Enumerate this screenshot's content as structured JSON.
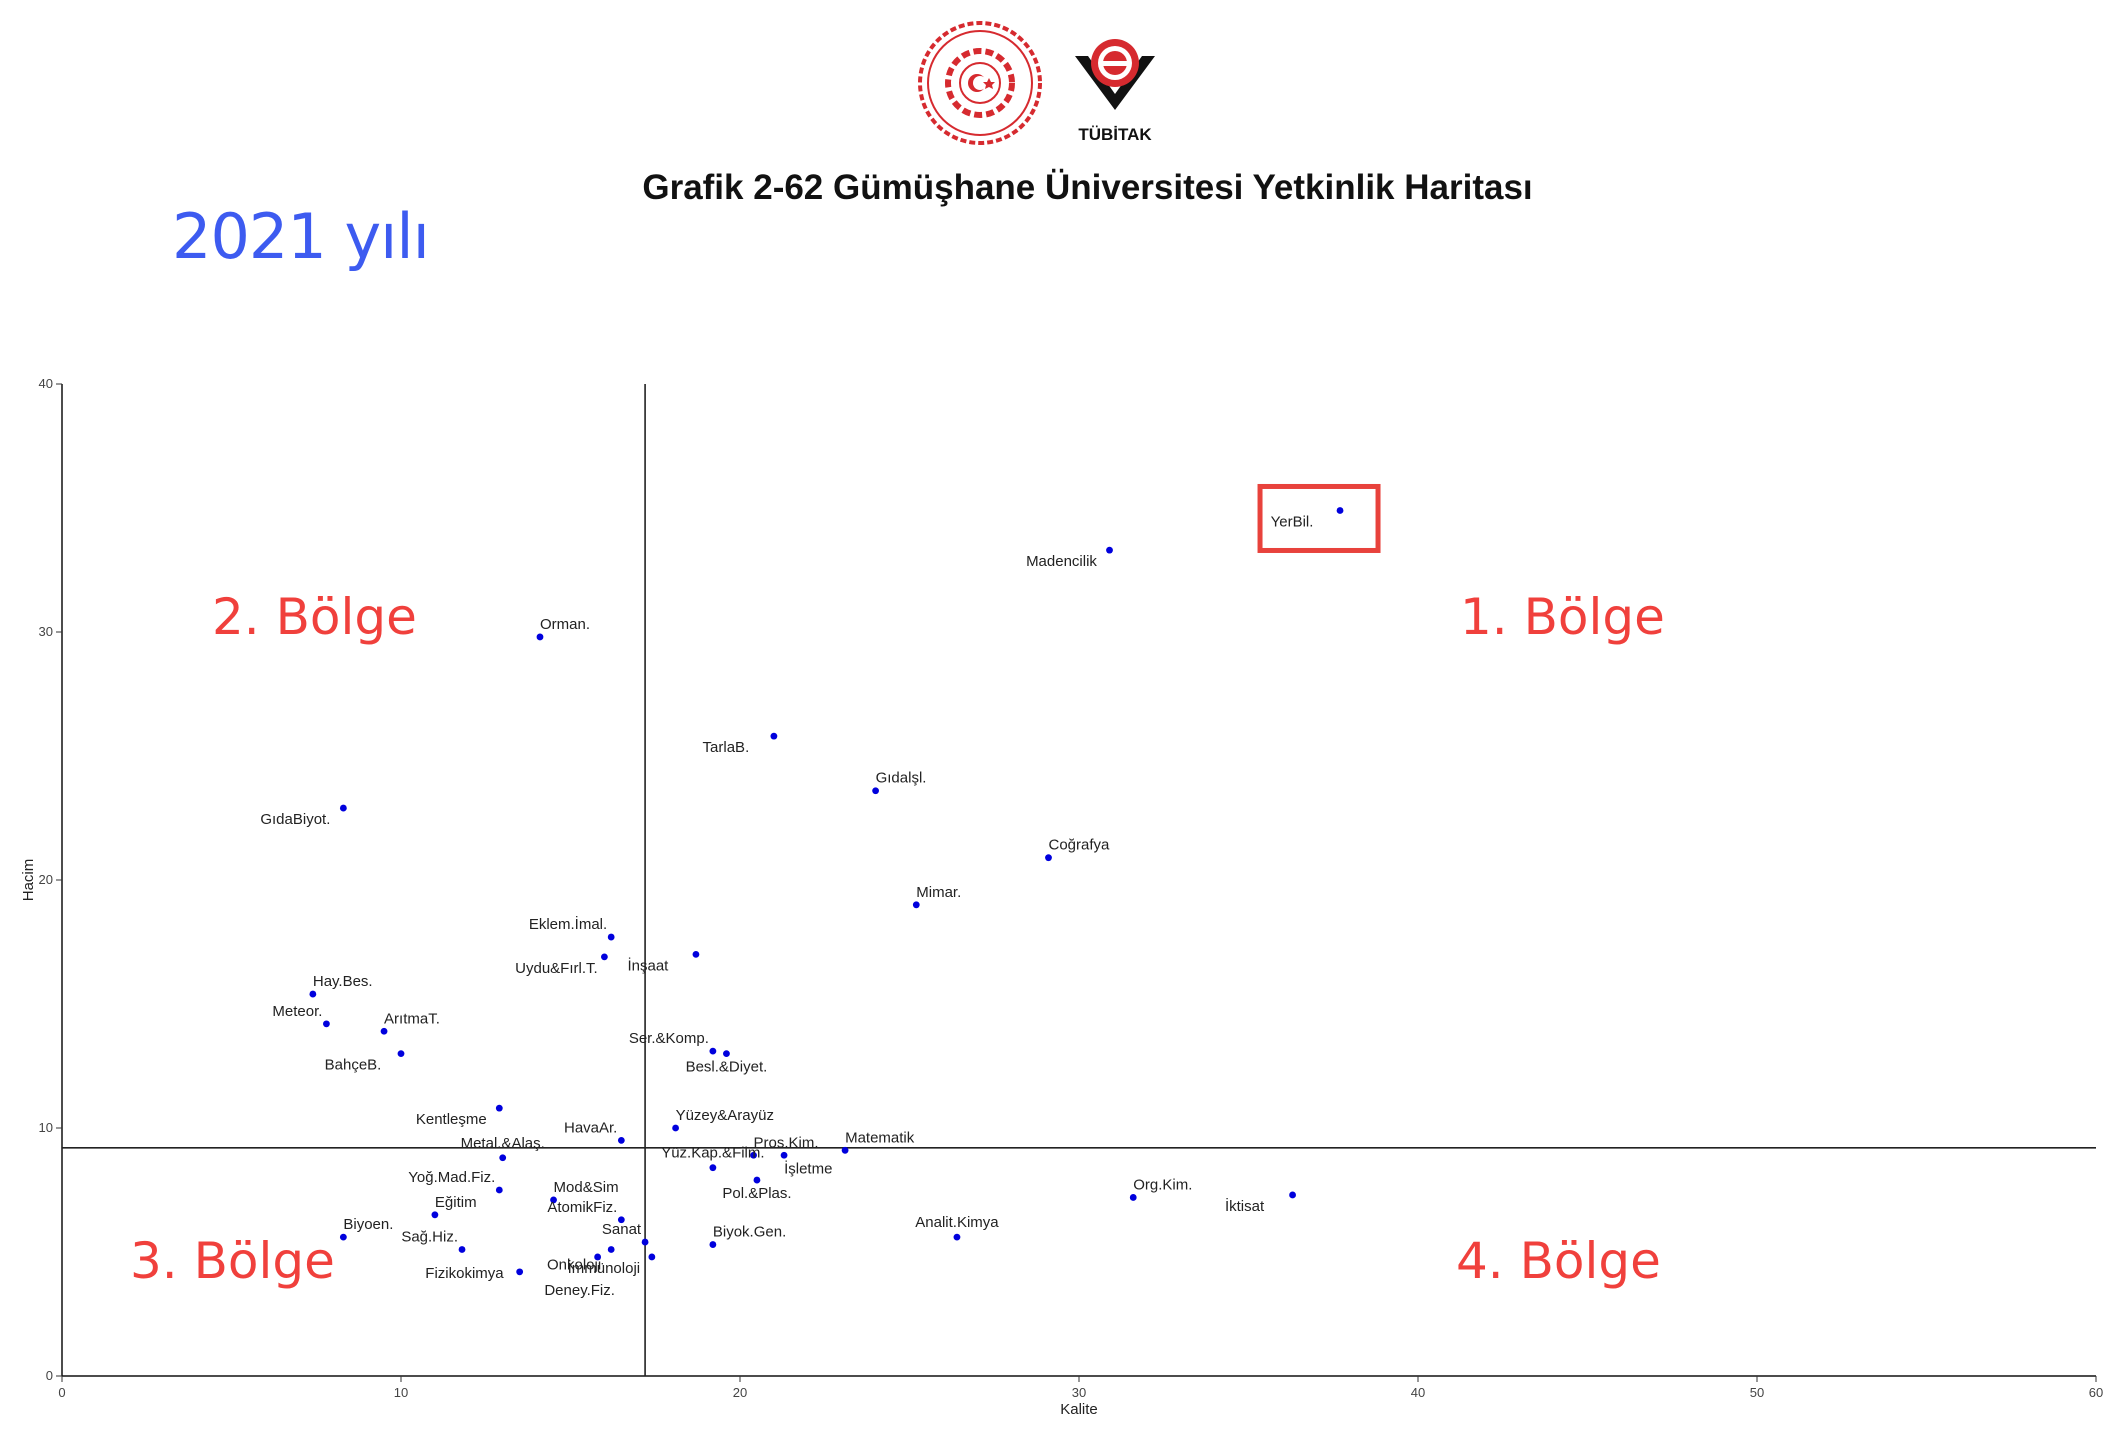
{
  "header": {
    "title": "Grafik 2-62 Gümüşhane Üniversitesi Yetkinlik Haritası",
    "year_label": "2021 yılı",
    "logo2_text": "TÜBİTAK"
  },
  "regions": {
    "r1": "1. Bölge",
    "r2": "2. Bölge",
    "r3": "3. Bölge",
    "r4": "4. Bölge"
  },
  "chart_data": {
    "type": "scatter",
    "xlabel": "Kalite",
    "ylabel": "Hacim",
    "xlim": [
      0,
      60
    ],
    "ylim": [
      0,
      40
    ],
    "xticks": [
      0,
      10,
      20,
      30,
      40,
      50,
      60
    ],
    "yticks": [
      0,
      10,
      20,
      30,
      40
    ],
    "reference_lines": {
      "x": 17.2,
      "y": 9.2
    },
    "point_color": "#0000dd",
    "highlight_color": "#e8423c",
    "highlighted": "YerBil.",
    "points": [
      {
        "label": "YerBil.",
        "x": 37.7,
        "y": 34.9,
        "anchor": "bl"
      },
      {
        "label": "Madencilik",
        "x": 30.9,
        "y": 33.3,
        "anchor": "bl"
      },
      {
        "label": "Orman.",
        "x": 14.1,
        "y": 29.8,
        "anchor": "tr"
      },
      {
        "label": "TarlaB.",
        "x": 21.0,
        "y": 25.8,
        "anchor": "bl"
      },
      {
        "label": "Gıdalşl.",
        "x": 24.0,
        "y": 23.6,
        "anchor": "tr"
      },
      {
        "label": "GıdaBiyot.",
        "x": 8.3,
        "y": 22.9,
        "anchor": "bl"
      },
      {
        "label": "Coğrafya",
        "x": 29.1,
        "y": 20.9,
        "anchor": "tr"
      },
      {
        "label": "Mimar.",
        "x": 25.2,
        "y": 19.0,
        "anchor": "tr"
      },
      {
        "label": "Eklem.İmal.",
        "x": 16.2,
        "y": 17.7,
        "anchor": "tl"
      },
      {
        "label": "İnşaat",
        "x": 18.7,
        "y": 17.0,
        "anchor": "bl"
      },
      {
        "label": "Uydu&Fırl.T.",
        "x": 16.0,
        "y": 16.9,
        "anchor": "bl"
      },
      {
        "label": "Hay.Bes.",
        "x": 7.4,
        "y": 15.4,
        "anchor": "tr"
      },
      {
        "label": "Meteor.",
        "x": 7.8,
        "y": 14.2,
        "anchor": "tl"
      },
      {
        "label": "ArıtmaT.",
        "x": 9.5,
        "y": 13.9,
        "anchor": "tr"
      },
      {
        "label": "BahçeB.",
        "x": 10.0,
        "y": 13.0,
        "anchor": "bl"
      },
      {
        "label": "Ser.&Komp.",
        "x": 19.2,
        "y": 13.1,
        "anchor": "tl"
      },
      {
        "label": "Besl.&Diyet.",
        "x": 19.6,
        "y": 13.0,
        "anchor": "bc"
      },
      {
        "label": "Kentleşme",
        "x": 12.9,
        "y": 10.8,
        "anchor": "bl"
      },
      {
        "label": "Yüzey&Arayüz",
        "x": 18.1,
        "y": 10.0,
        "anchor": "tr"
      },
      {
        "label": "HavaAr.",
        "x": 16.5,
        "y": 9.5,
        "anchor": "tl"
      },
      {
        "label": "Metal.&Alaş.",
        "x": 13.0,
        "y": 8.8,
        "anchor": "tc"
      },
      {
        "label": "Pros.Kim.",
        "x": 20.4,
        "y": 8.9,
        "anchor": "tr"
      },
      {
        "label": "Matematik",
        "x": 23.1,
        "y": 9.1,
        "anchor": "tr"
      },
      {
        "label": "İşletme",
        "x": 21.3,
        "y": 8.9,
        "anchor": "br"
      },
      {
        "label": "Yüz.Kap.&Film.",
        "x": 19.2,
        "y": 8.4,
        "anchor": "tc"
      },
      {
        "label": "Pol.&Plas.",
        "x": 20.5,
        "y": 7.9,
        "anchor": "bc"
      },
      {
        "label": "Yoğ.Mad.Fiz.",
        "x": 12.9,
        "y": 7.5,
        "anchor": "tl"
      },
      {
        "label": "Mod&Sim",
        "x": 14.5,
        "y": 7.1,
        "anchor": "tr"
      },
      {
        "label": "Eğitim",
        "x": 11.0,
        "y": 6.5,
        "anchor": "tr"
      },
      {
        "label": "AtomikFiz.",
        "x": 16.5,
        "y": 6.3,
        "anchor": "tl"
      },
      {
        "label": "Org.Kim.",
        "x": 31.6,
        "y": 7.2,
        "anchor": "tr"
      },
      {
        "label": "İktisat",
        "x": 36.3,
        "y": 7.3,
        "anchor": "bl"
      },
      {
        "label": "Analit.Kimya",
        "x": 26.4,
        "y": 5.6,
        "anchor": "tc"
      },
      {
        "label": "Biyoen.",
        "x": 8.3,
        "y": 5.6,
        "anchor": "tr"
      },
      {
        "label": "Biyok.Gen.",
        "x": 19.2,
        "y": 5.3,
        "anchor": "tr"
      },
      {
        "label": "Sanat",
        "x": 17.2,
        "y": 5.4,
        "anchor": "tl"
      },
      {
        "label": "Sağ.Hiz.",
        "x": 11.8,
        "y": 5.1,
        "anchor": "tl"
      },
      {
        "label": "Onkoloji",
        "x": 16.2,
        "y": 5.1,
        "anchor": "ll"
      },
      {
        "label": "İmmünoloji",
        "x": 17.4,
        "y": 4.8,
        "anchor": "bl"
      },
      {
        "label": "Fizikokimya",
        "x": 13.5,
        "y": 4.2,
        "anchor": "ll2"
      },
      {
        "label": "Deney.Fiz.",
        "x": 15.8,
        "y": 4.8,
        "anchor": "ll3"
      }
    ]
  }
}
